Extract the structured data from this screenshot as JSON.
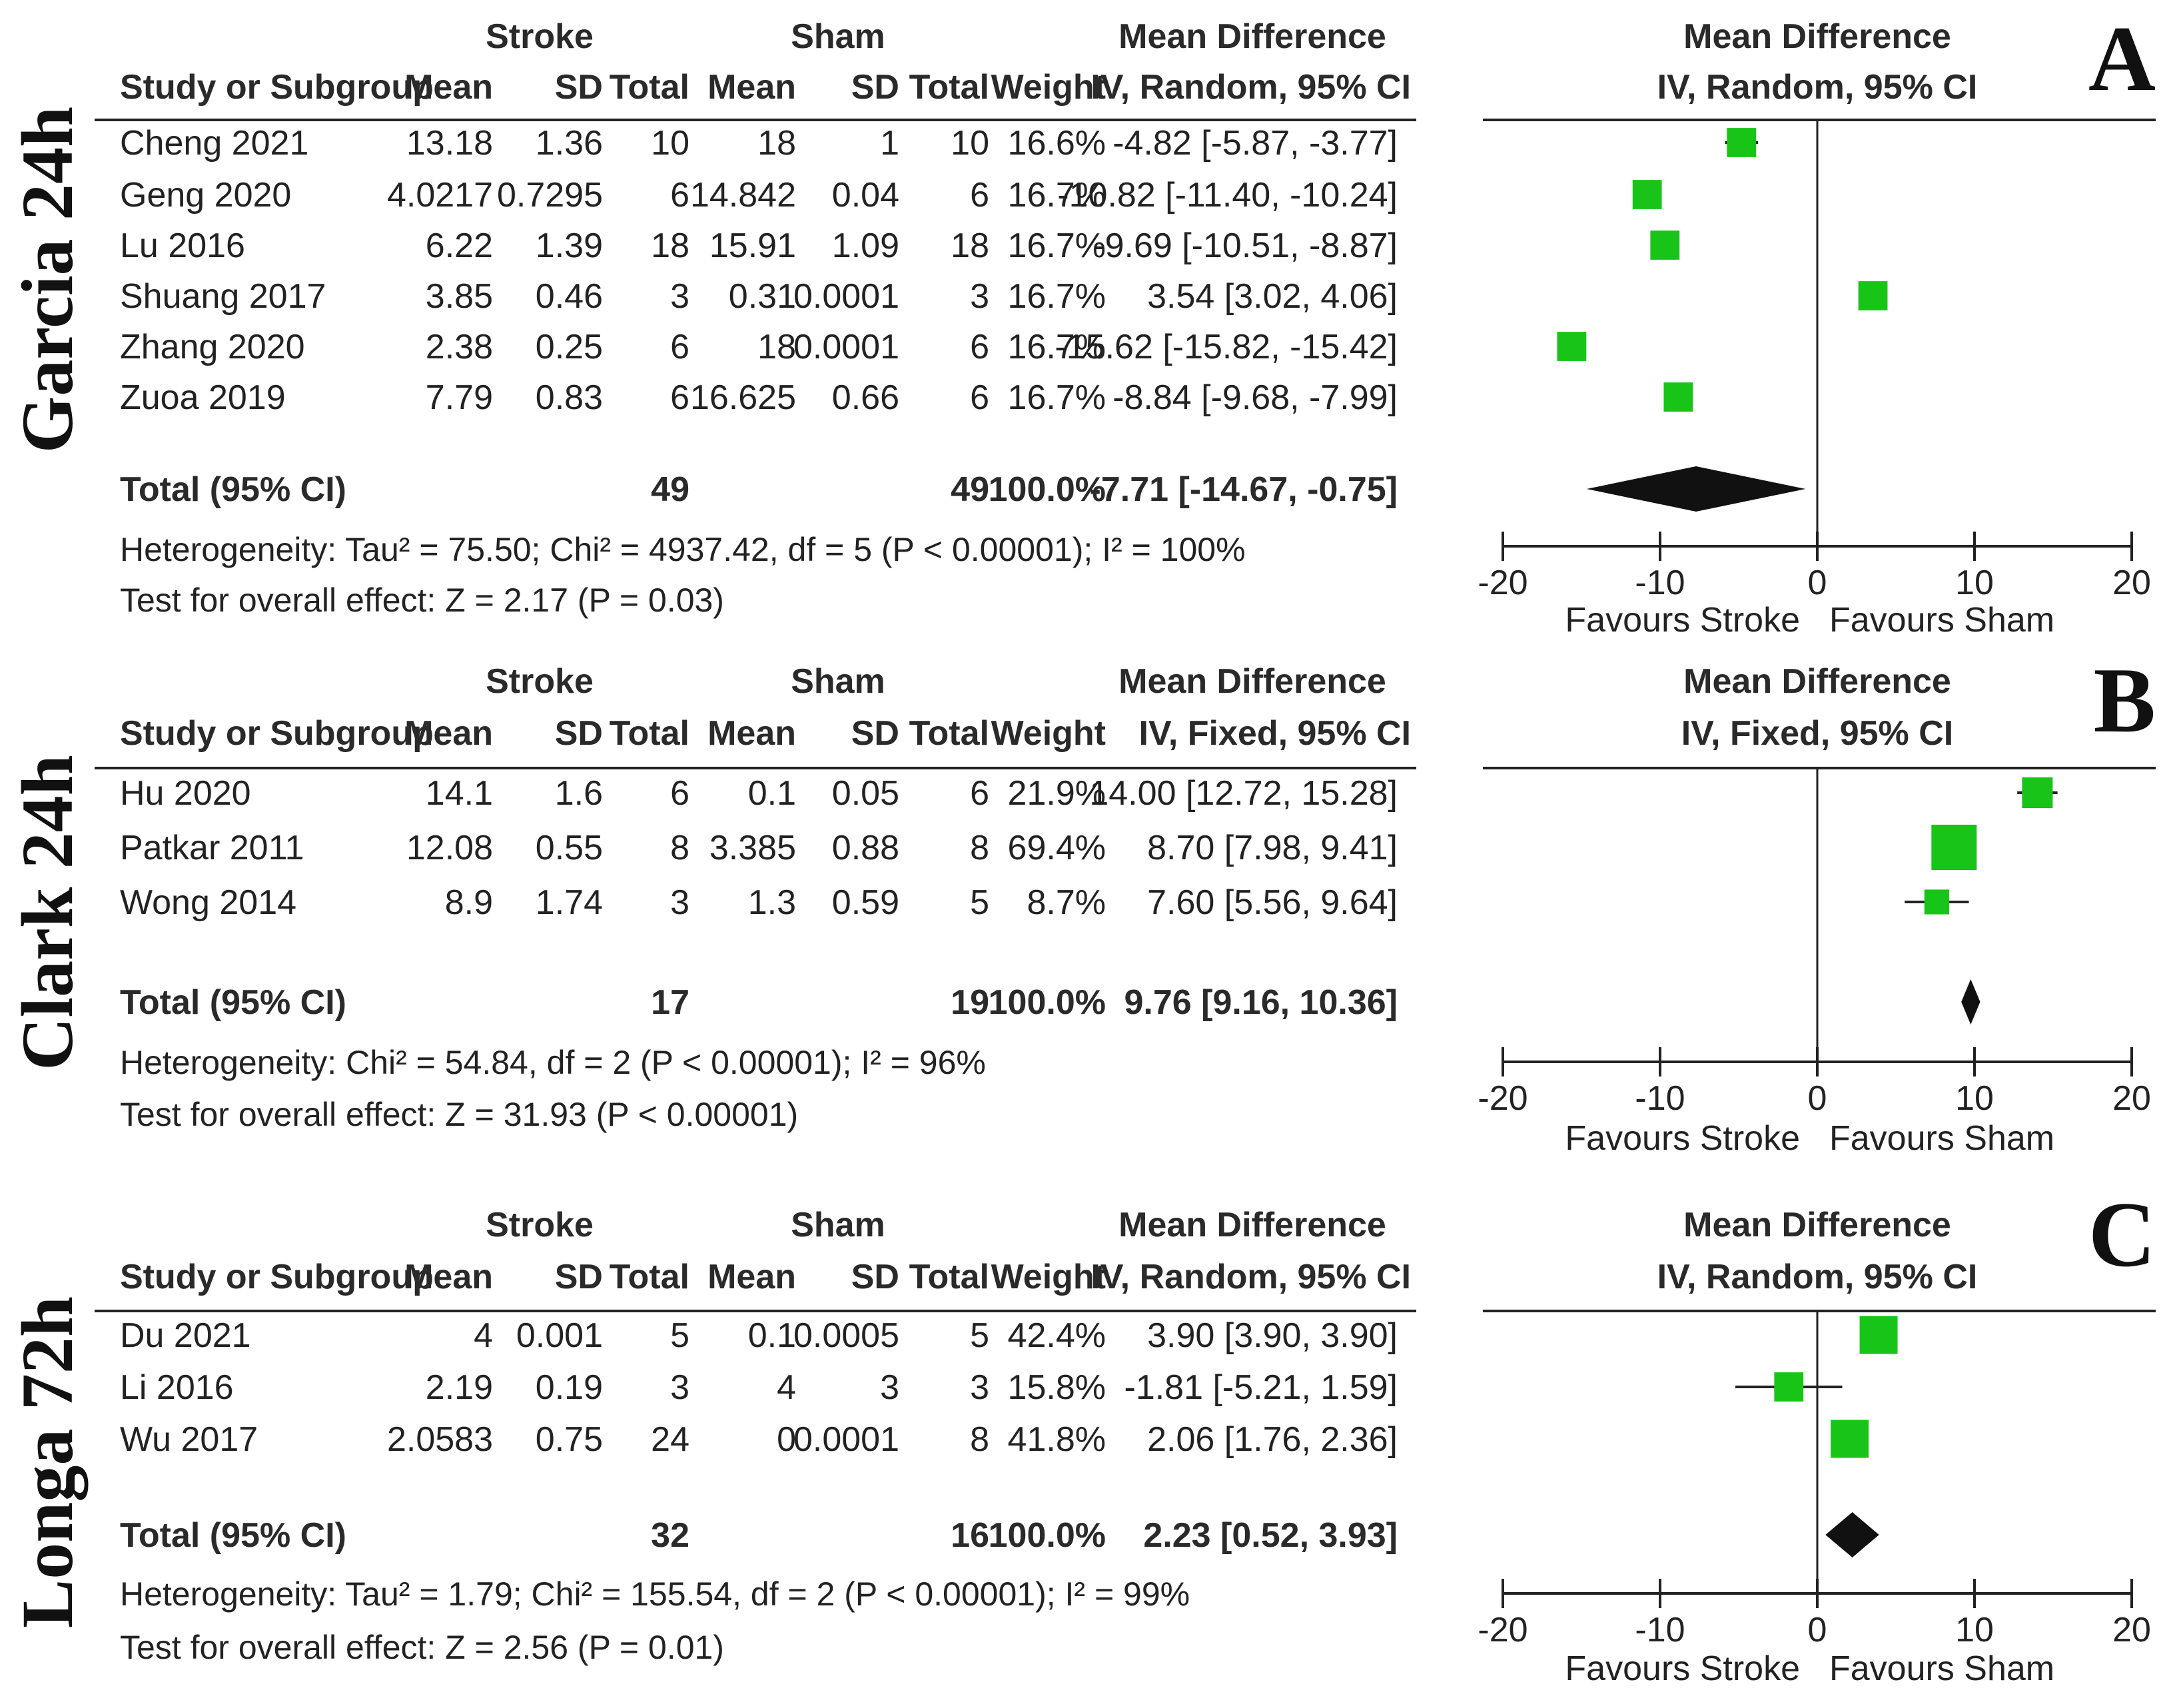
{
  "chart_data": [
    {
      "type": "forest",
      "panel_letter": "A",
      "side_label": "Garcia 24h",
      "group_headers": {
        "stroke": "Stroke",
        "sham": "Sham",
        "md": "Mean Difference",
        "plot": "Mean Difference"
      },
      "columns": [
        "Study or Subgroup",
        "Mean",
        "SD",
        "Total",
        "Mean",
        "SD",
        "Total",
        "Weight",
        "IV, Random, 95% CI"
      ],
      "plot_method": "IV, Random, 95% CI",
      "studies": [
        {
          "name": "Cheng 2021",
          "s_mean": "13.18",
          "s_sd": "1.36",
          "s_total": "10",
          "c_mean": "18",
          "c_sd": "1",
          "c_total": "10",
          "weight": "16.6%",
          "ci_text": "-4.82 [-5.87, -3.77]",
          "md": -4.82,
          "lo": -5.87,
          "hi": -3.77,
          "box": 0.45
        },
        {
          "name": "Geng 2020",
          "s_mean": "4.0217",
          "s_sd": "0.7295",
          "s_total": "6",
          "c_mean": "14.842",
          "c_sd": "0.04",
          "c_total": "6",
          "weight": "16.7%",
          "ci_text": "-10.82 [-11.40, -10.24]",
          "md": -10.82,
          "lo": -11.4,
          "hi": -10.24,
          "box": 0.45
        },
        {
          "name": "Lu 2016",
          "s_mean": "6.22",
          "s_sd": "1.39",
          "s_total": "18",
          "c_mean": "15.91",
          "c_sd": "1.09",
          "c_total": "18",
          "weight": "16.7%",
          "ci_text": "-9.69 [-10.51, -8.87]",
          "md": -9.69,
          "lo": -10.51,
          "hi": -8.87,
          "box": 0.45
        },
        {
          "name": "Shuang 2017",
          "s_mean": "3.85",
          "s_sd": "0.46",
          "s_total": "3",
          "c_mean": "0.31",
          "c_sd": "0.0001",
          "c_total": "3",
          "weight": "16.7%",
          "ci_text": "3.54 [3.02, 4.06]",
          "md": 3.54,
          "lo": 3.02,
          "hi": 4.06,
          "box": 0.45
        },
        {
          "name": "Zhang 2020",
          "s_mean": "2.38",
          "s_sd": "0.25",
          "s_total": "6",
          "c_mean": "18",
          "c_sd": "0.0001",
          "c_total": "6",
          "weight": "16.7%",
          "ci_text": "-15.62 [-15.82, -15.42]",
          "md": -15.62,
          "lo": -15.82,
          "hi": -15.42,
          "box": 0.45
        },
        {
          "name": "Zuoa 2019",
          "s_mean": "7.79",
          "s_sd": "0.83",
          "s_total": "6",
          "c_mean": "16.625",
          "c_sd": "0.66",
          "c_total": "6",
          "weight": "16.7%",
          "ci_text": "-8.84 [-9.68, -7.99]",
          "md": -8.84,
          "lo": -9.68,
          "hi": -7.99,
          "box": 0.45
        }
      ],
      "total": {
        "label": "Total (95% CI)",
        "s_total": "49",
        "c_total": "49",
        "weight": "100.0%",
        "ci_text": "-7.71 [-14.67, -0.75]",
        "md": -7.71,
        "lo": -14.67,
        "hi": -0.75
      },
      "heterogeneity": "Heterogeneity: Tau² = 75.50; Chi² = 4937.42, df = 5 (P < 0.00001); I² = 100%",
      "overall": "Test for overall effect: Z = 2.17 (P = 0.03)",
      "xlim": [
        -20,
        20
      ],
      "ticks": [
        -20,
        -10,
        0,
        10,
        20
      ],
      "tick_labels": [
        "-20",
        "-10",
        "0",
        "10",
        "20"
      ],
      "favours_left": "Favours Stroke",
      "favours_right": "Favours Sham"
    },
    {
      "type": "forest",
      "panel_letter": "B",
      "side_label": "Clark 24h",
      "group_headers": {
        "stroke": "Stroke",
        "sham": "Sham",
        "md": "Mean Difference",
        "plot": "Mean Difference"
      },
      "columns": [
        "Study or Subgroup",
        "Mean",
        "SD",
        "Total",
        "Mean",
        "SD",
        "Total",
        "Weight",
        "IV, Fixed, 95% CI"
      ],
      "plot_method": "IV, Fixed, 95% CI",
      "studies": [
        {
          "name": "Hu 2020",
          "s_mean": "14.1",
          "s_sd": "1.6",
          "s_total": "6",
          "c_mean": "0.1",
          "c_sd": "0.05",
          "c_total": "6",
          "weight": "21.9%",
          "ci_text": "14.00 [12.72, 15.28]",
          "md": 14.0,
          "lo": 12.72,
          "hi": 15.28,
          "box": 0.5
        },
        {
          "name": "Patkar 2011",
          "s_mean": "12.08",
          "s_sd": "0.55",
          "s_total": "8",
          "c_mean": "3.385",
          "c_sd": "0.88",
          "c_total": "8",
          "weight": "69.4%",
          "ci_text": "8.70 [7.98, 9.41]",
          "md": 8.7,
          "lo": 7.98,
          "hi": 9.41,
          "box": 1.0
        },
        {
          "name": "Wong 2014",
          "s_mean": "8.9",
          "s_sd": "1.74",
          "s_total": "3",
          "c_mean": "1.3",
          "c_sd": "0.59",
          "c_total": "5",
          "weight": "8.7%",
          "ci_text": "7.60 [5.56, 9.64]",
          "md": 7.6,
          "lo": 5.56,
          "hi": 9.64,
          "box": 0.3
        }
      ],
      "total": {
        "label": "Total (95% CI)",
        "s_total": "17",
        "c_total": "19",
        "weight": "100.0%",
        "ci_text": "9.76 [9.16, 10.36]",
        "md": 9.76,
        "lo": 9.16,
        "hi": 10.36
      },
      "heterogeneity": "Heterogeneity: Chi² = 54.84, df = 2 (P < 0.00001); I² = 96%",
      "overall": "Test for overall effect: Z = 31.93 (P < 0.00001)",
      "xlim": [
        -20,
        20
      ],
      "ticks": [
        -20,
        -10,
        0,
        10,
        20
      ],
      "tick_labels": [
        "-20",
        "-10",
        "0",
        "10",
        "20"
      ],
      "favours_left": "Favours Stroke",
      "favours_right": "Favours Sham"
    },
    {
      "type": "forest",
      "panel_letter": "C",
      "side_label": "Longa 72h",
      "group_headers": {
        "stroke": "Stroke",
        "sham": "Sham",
        "md": "Mean Difference",
        "plot": "Mean Difference"
      },
      "columns": [
        "Study or Subgroup",
        "Mean",
        "SD",
        "Total",
        "Mean",
        "SD",
        "Total",
        "Weight",
        "IV, Random, 95% CI"
      ],
      "plot_method": "IV, Random, 95% CI",
      "studies": [
        {
          "name": "Du 2021",
          "s_mean": "4",
          "s_sd": "0.001",
          "s_total": "5",
          "c_mean": "0.1",
          "c_sd": "0.0005",
          "c_total": "5",
          "weight": "42.4%",
          "ci_text": "3.90 [3.90, 3.90]",
          "md": 3.9,
          "lo": 3.9,
          "hi": 3.9,
          "box": 0.75
        },
        {
          "name": "Li 2016",
          "s_mean": "2.19",
          "s_sd": "0.19",
          "s_total": "3",
          "c_mean": "4",
          "c_sd": "3",
          "c_total": "3",
          "weight": "15.8%",
          "ci_text": "-1.81 [-5.21, 1.59]",
          "md": -1.81,
          "lo": -5.21,
          "hi": 1.59,
          "box": 0.45
        },
        {
          "name": "Wu 2017",
          "s_mean": "2.0583",
          "s_sd": "0.75",
          "s_total": "24",
          "c_mean": "0",
          "c_sd": "0.0001",
          "c_total": "8",
          "weight": "41.8%",
          "ci_text": "2.06 [1.76, 2.36]",
          "md": 2.06,
          "lo": 1.76,
          "hi": 2.36,
          "box": 0.75
        }
      ],
      "total": {
        "label": "Total (95% CI)",
        "s_total": "32",
        "c_total": "16",
        "weight": "100.0%",
        "ci_text": "2.23 [0.52, 3.93]",
        "md": 2.23,
        "lo": 0.52,
        "hi": 3.93
      },
      "heterogeneity": "Heterogeneity: Tau² = 1.79; Chi² = 155.54, df = 2 (P < 0.00001); I² = 99%",
      "overall": "Test for overall effect: Z = 2.56 (P = 0.01)",
      "xlim": [
        -20,
        20
      ],
      "ticks": [
        -20,
        -10,
        0,
        10,
        20
      ],
      "tick_labels": [
        "-20",
        "-10",
        "0",
        "10",
        "20"
      ],
      "favours_left": "Favours Stroke",
      "favours_right": "Favours Sham"
    }
  ],
  "colors": {
    "box": "#19c419",
    "diamond": "#111111",
    "line": "#222222",
    "text": "#222222"
  }
}
